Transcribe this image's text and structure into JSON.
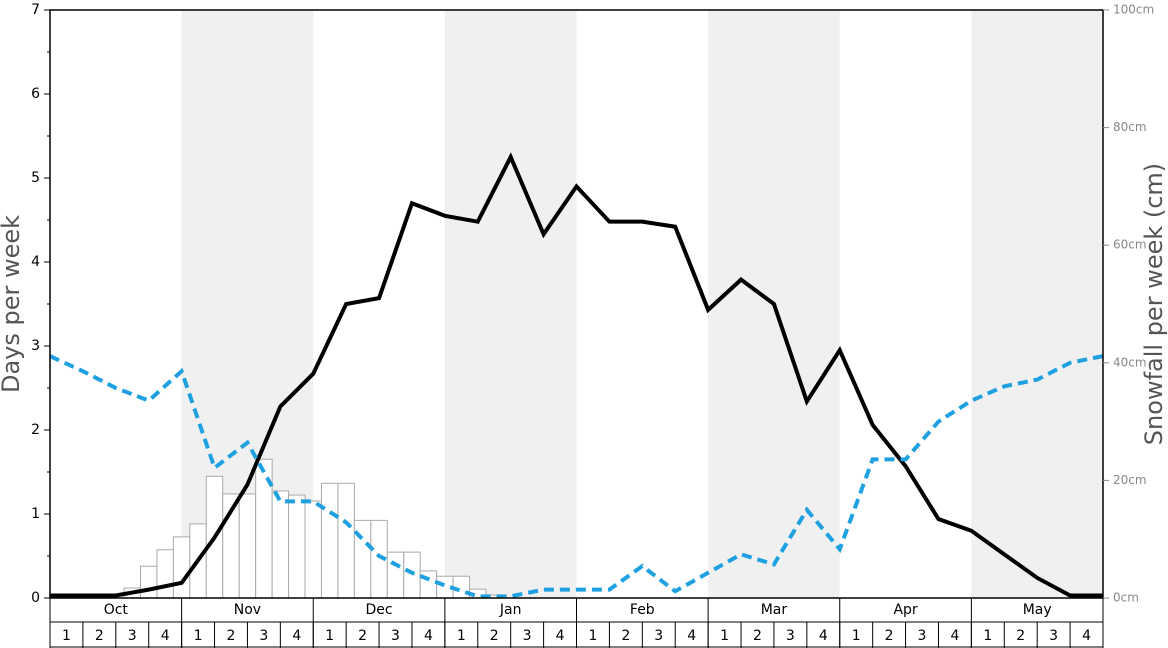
{
  "chart_data": {
    "type": "line",
    "y_label": "Days per week",
    "y2_label": "Snowfall per week (cm)",
    "months": [
      "Oct",
      "Nov",
      "Dec",
      "Jan",
      "Feb",
      "Mar",
      "Apr",
      "May"
    ],
    "weeks": [
      1,
      2,
      3,
      4,
      1,
      2,
      3,
      4,
      1,
      2,
      3,
      4,
      1,
      2,
      3,
      4,
      1,
      2,
      3,
      4,
      1,
      2,
      3,
      4,
      1,
      2,
      3,
      4,
      1,
      2,
      3,
      4
    ],
    "shade": "#f0f0f0",
    "x": [
      0,
      1,
      2,
      3,
      4,
      5,
      6,
      7,
      8,
      9,
      10,
      11,
      12,
      13,
      14,
      15,
      16,
      17,
      18,
      19,
      20,
      21,
      22,
      23,
      24,
      25,
      26,
      27,
      28,
      29,
      30,
      31,
      32
    ],
    "xlim": [
      0,
      32
    ],
    "ylim": [
      0,
      7
    ],
    "yticks": [
      0,
      1,
      2,
      3,
      4,
      5,
      6,
      7
    ],
    "y2lim": [
      0,
      100
    ],
    "y2ticks": [
      {
        "value": 0,
        "label": "0cm"
      },
      {
        "value": 20,
        "label": "20cm"
      },
      {
        "value": 40,
        "label": "40cm"
      },
      {
        "value": 60,
        "label": "60cm"
      },
      {
        "value": 80,
        "label": "80cm"
      },
      {
        "value": 100,
        "label": "100cm"
      }
    ],
    "series": [
      {
        "color": "#000000",
        "style": "solid",
        "values": [
          0.03,
          0.03,
          0.03,
          0.1,
          0.18,
          0.72,
          1.35,
          2.28,
          2.67,
          3.5,
          3.57,
          4.7,
          4.55,
          4.48,
          5.25,
          4.33,
          4.9,
          4.48,
          4.48,
          4.42,
          3.43,
          3.79,
          3.5,
          2.34,
          2.95,
          2.06,
          1.57,
          0.94,
          0.8,
          0.52,
          0.24,
          0.03,
          0.03
        ]
      },
      {
        "color": "#1fa0e0",
        "style": "dashed",
        "values": [
          2.88,
          2.7,
          2.5,
          2.35,
          2.7,
          1.55,
          1.85,
          1.15,
          1.15,
          0.9,
          0.5,
          0.3,
          0.15,
          0.02,
          0.02,
          0.1,
          0.1,
          0.1,
          0.38,
          0.08,
          0.3,
          0.52,
          0.4,
          1.05,
          0.58,
          1.65,
          1.65,
          2.1,
          2.35,
          2.52,
          2.6,
          2.8,
          2.88
        ]
      }
    ],
    "snowfall": {
      "axis": "y2",
      "color": "#ffffff",
      "edge": "#aaaaaa",
      "bins": [
        2.25,
        2.75,
        3.25,
        3.75,
        4.25,
        4.75,
        5.25,
        5.75,
        6.25,
        6.75,
        7.25,
        7.75,
        8.25,
        8.75,
        9.25,
        9.75,
        10.25,
        10.75,
        11.25,
        11.75,
        12.25,
        12.75,
        13.25,
        13.75
      ],
      "values": [
        1.7,
        5.4,
        8.2,
        10.4,
        12.6,
        20.7,
        17.7,
        17.7,
        23.6,
        18.2,
        17.5,
        16.5,
        19.5,
        19.5,
        13.2,
        13.2,
        7.8,
        7.8,
        4.6,
        3.7,
        3.7,
        1.5,
        0.5
      ]
    }
  }
}
